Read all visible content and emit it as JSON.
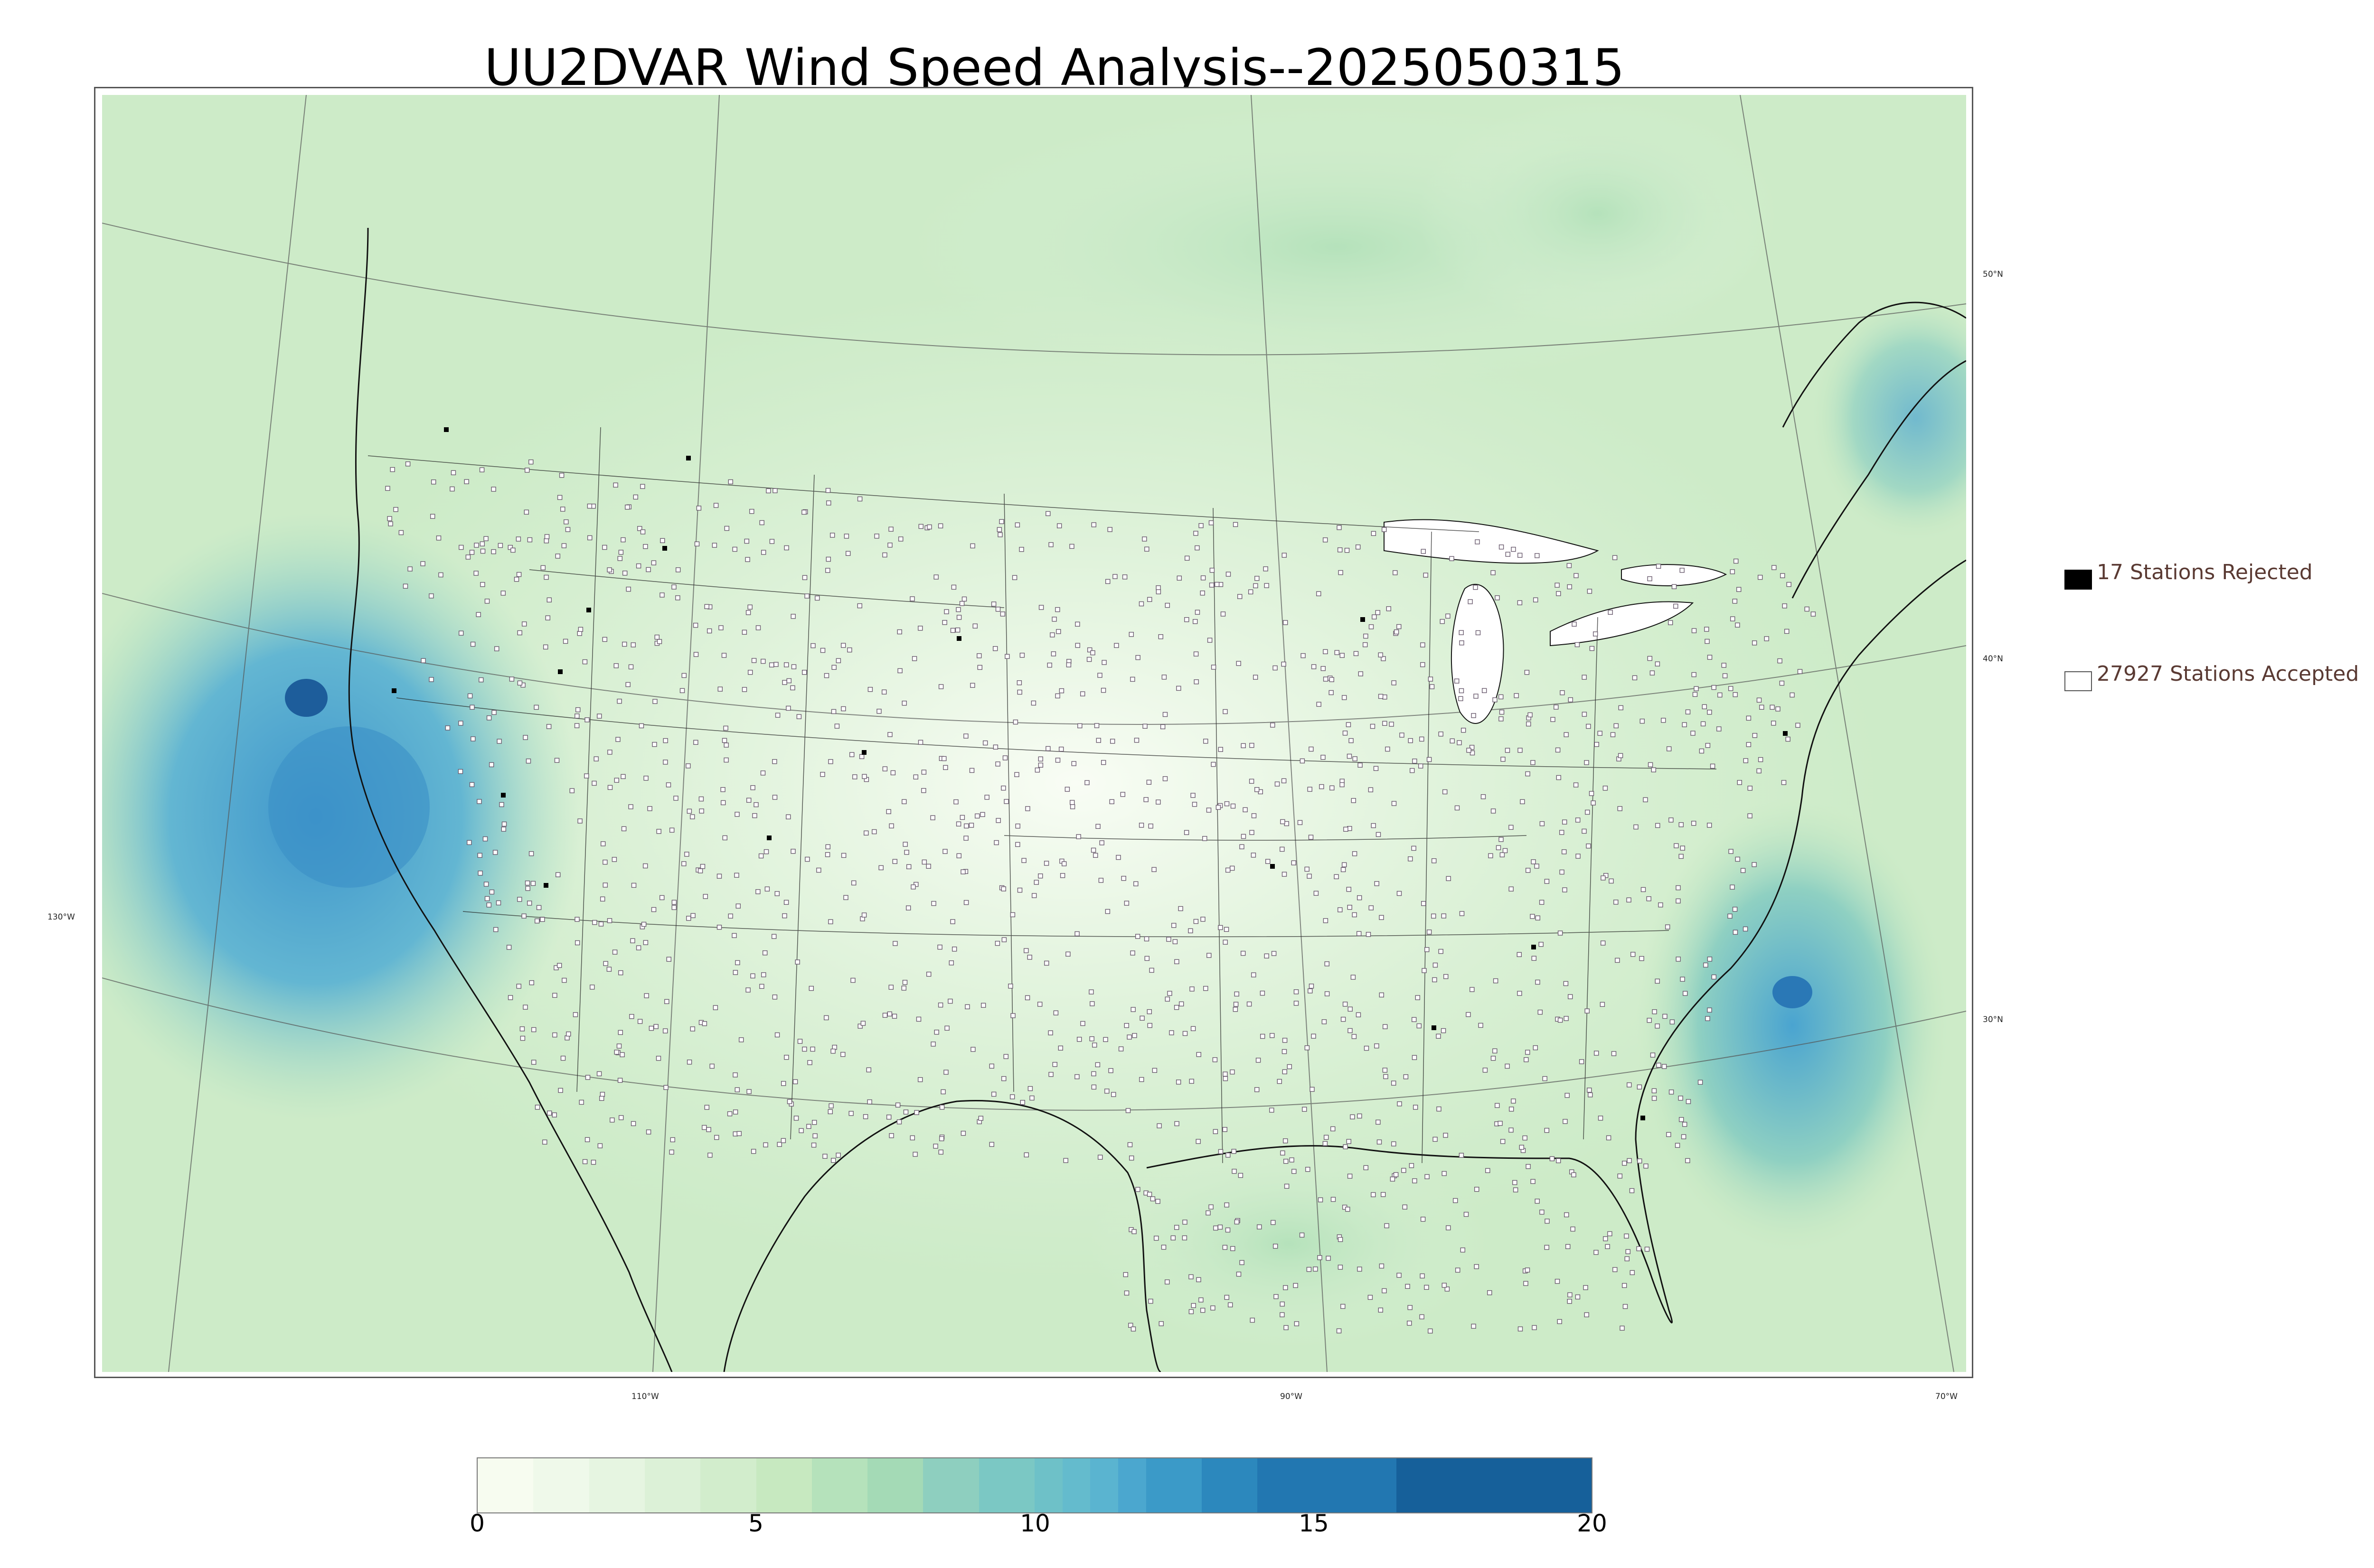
{
  "title": "UU2DVAR Wind Speed Analysis--2025050315",
  "map": {
    "lat_labels": [
      "50°N",
      "40°N",
      "30°N"
    ],
    "lon_labels": [
      "130°W",
      "110°W",
      "90°W",
      "70°W"
    ]
  },
  "legend": {
    "rejected": {
      "label": "17 Stations Rejected",
      "color": "#000000"
    },
    "accepted": {
      "label": "27927 Stations Accepted",
      "color": "#ffffff"
    }
  },
  "colorbar": {
    "ticks": [
      "0",
      "5",
      "10",
      "15",
      "20"
    ],
    "min": 0,
    "max": 20,
    "levels": [
      0,
      1,
      2,
      3,
      4,
      5,
      6,
      7,
      8,
      9,
      10,
      10.5,
      11,
      11.5,
      12,
      13,
      14,
      16.5,
      20
    ],
    "colors": [
      "#f7fcf0",
      "#eff9ea",
      "#e6f5e1",
      "#dcf1d7",
      "#d2edcc",
      "#c7e9c0",
      "#b5e2bb",
      "#a4dab6",
      "#8ecfbf",
      "#7bc8c4",
      "#6ec1c8",
      "#64bbcd",
      "#5ab4d0",
      "#4ba7cf",
      "#3b9ac8",
      "#2c88bd",
      "#2277b1",
      "#16609a"
    ]
  },
  "colors": {
    "ocean_strong": "#3f96cc",
    "ocean_max": "#1d5d9b",
    "land_base": "#e9f6e2"
  }
}
